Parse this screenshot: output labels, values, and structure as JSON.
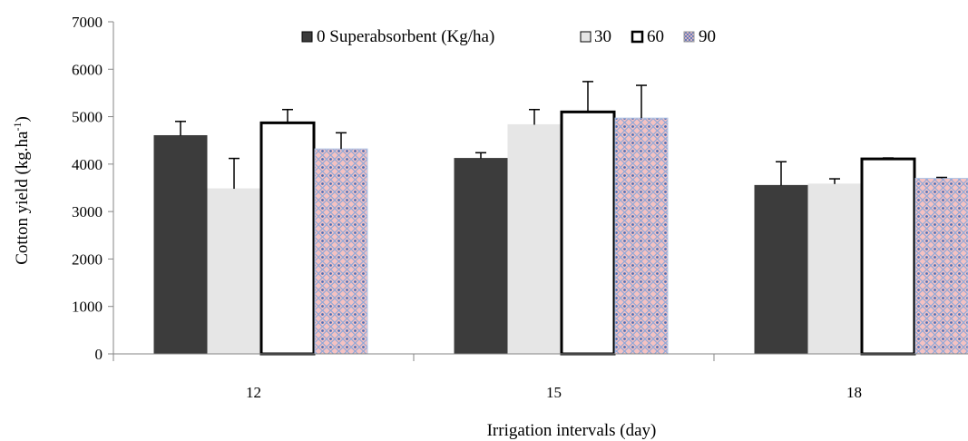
{
  "chart_data": {
    "type": "bar",
    "categories": [
      "12",
      "15",
      "18"
    ],
    "series": [
      {
        "name": "0 Superabsorbent (Kg/ha)",
        "values": [
          4600,
          4120,
          3550
        ],
        "errors": [
          300,
          120,
          500
        ],
        "color": "#3c3c3c",
        "border": "#3c3c3c"
      },
      {
        "name": "30",
        "values": [
          3480,
          4830,
          3580
        ],
        "errors": [
          640,
          320,
          110
        ],
        "color": "#e6e6e6",
        "border": "#e6e6e6"
      },
      {
        "name": "60",
        "values": [
          4870,
          5100,
          4110
        ],
        "errors": [
          280,
          640,
          20
        ],
        "color": "#ffffff",
        "border": "#000000"
      },
      {
        "name": "90",
        "values": [
          4320,
          4970,
          3700
        ],
        "errors": [
          340,
          690,
          20
        ],
        "color": "#f2b8b8",
        "border": "#b0c4e6",
        "pattern": true
      }
    ],
    "xlabel": "Irrigation intervals (day)",
    "ylabel_main": "Cotton yield (kg.ha",
    "ylabel_sup": "-1",
    "ylabel_end": ")",
    "ylim": [
      0,
      7000
    ],
    "yticks": [
      "0",
      "1000",
      "2000",
      "3000",
      "4000",
      "5000",
      "6000",
      "7000"
    ],
    "legend": "top",
    "grid": false
  }
}
